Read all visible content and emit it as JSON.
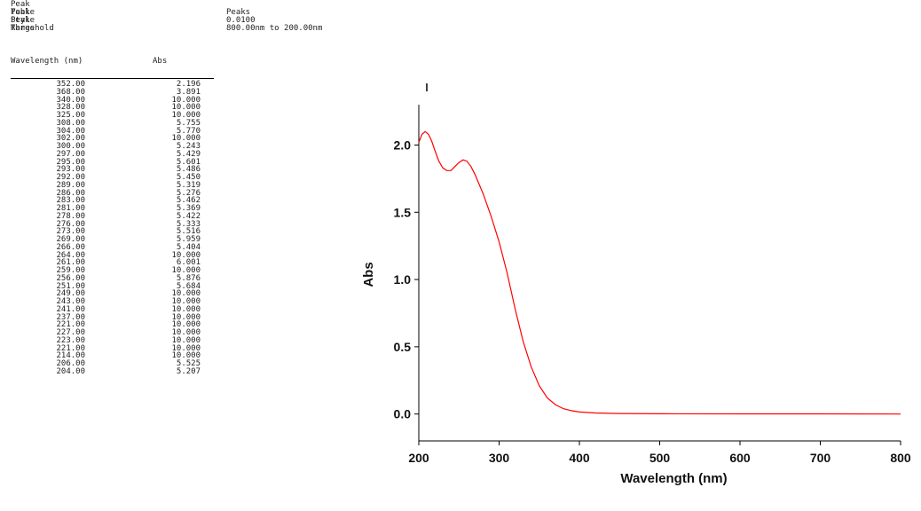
{
  "header": {
    "rows": [
      {
        "key": "Peak Table",
        "value": ""
      },
      {
        "key": "Peak Style",
        "value": "Peaks"
      },
      {
        "key": "Peak Threshold",
        "value": "0.0100"
      },
      {
        "key": "Range",
        "value": "800.00nm to 200.00nm"
      }
    ]
  },
  "table": {
    "col_wavelength": "Wavelength (nm)",
    "col_abs": "Abs",
    "rows": [
      {
        "wavelength": "352.00",
        "abs": "2.196"
      },
      {
        "wavelength": "368.00",
        "abs": "3.891"
      },
      {
        "wavelength": "340.00",
        "abs": "10.000"
      },
      {
        "wavelength": "328.00",
        "abs": "10.000"
      },
      {
        "wavelength": "325.00",
        "abs": "10.000"
      },
      {
        "wavelength": "308.00",
        "abs": "5.755"
      },
      {
        "wavelength": "304.00",
        "abs": "5.770"
      },
      {
        "wavelength": "302.00",
        "abs": "10.000"
      },
      {
        "wavelength": "300.00",
        "abs": "5.243"
      },
      {
        "wavelength": "297.00",
        "abs": "5.429"
      },
      {
        "wavelength": "295.00",
        "abs": "5.601"
      },
      {
        "wavelength": "293.00",
        "abs": "5.486"
      },
      {
        "wavelength": "292.00",
        "abs": "5.450"
      },
      {
        "wavelength": "289.00",
        "abs": "5.319"
      },
      {
        "wavelength": "286.00",
        "abs": "5.276"
      },
      {
        "wavelength": "283.00",
        "abs": "5.462"
      },
      {
        "wavelength": "281.00",
        "abs": "5.369"
      },
      {
        "wavelength": "278.00",
        "abs": "5.422"
      },
      {
        "wavelength": "276.00",
        "abs": "5.333"
      },
      {
        "wavelength": "273.00",
        "abs": "5.516"
      },
      {
        "wavelength": "269.00",
        "abs": "5.959"
      },
      {
        "wavelength": "266.00",
        "abs": "5.404"
      },
      {
        "wavelength": "264.00",
        "abs": "10.000"
      },
      {
        "wavelength": "261.00",
        "abs": "6.001"
      },
      {
        "wavelength": "259.00",
        "abs": "10.000"
      },
      {
        "wavelength": "256.00",
        "abs": "5.876"
      },
      {
        "wavelength": "251.00",
        "abs": "5.684"
      },
      {
        "wavelength": "249.00",
        "abs": "10.000"
      },
      {
        "wavelength": "243.00",
        "abs": "10.000"
      },
      {
        "wavelength": "241.00",
        "abs": "10.000"
      },
      {
        "wavelength": "237.00",
        "abs": "10.000"
      },
      {
        "wavelength": "221.00",
        "abs": "10.000"
      },
      {
        "wavelength": "227.00",
        "abs": "10.000"
      },
      {
        "wavelength": "223.00",
        "abs": "10.000"
      },
      {
        "wavelength": "221.00",
        "abs": "10.000"
      },
      {
        "wavelength": "214.00",
        "abs": "10.000"
      },
      {
        "wavelength": "206.00",
        "abs": "5.525"
      },
      {
        "wavelength": "204.00",
        "abs": "5.207"
      }
    ]
  },
  "chart_data": {
    "type": "line",
    "title": "",
    "xlabel": "Wavelength (nm)",
    "ylabel": "Abs",
    "xlim": [
      200,
      800
    ],
    "ylim": [
      -0.2,
      2.3
    ],
    "xticks": [
      "200",
      "300",
      "400",
      "500",
      "600",
      "700",
      "800"
    ],
    "yticks": [
      "0.0",
      "0.5",
      "1.0",
      "1.5",
      "2.0"
    ],
    "grid": false,
    "series": [
      {
        "color": "#ff0000",
        "x": [
          200,
          204,
          208,
          212,
          216,
          220,
          225,
          230,
          235,
          240,
          245,
          250,
          255,
          260,
          265,
          270,
          280,
          290,
          300,
          310,
          320,
          330,
          340,
          350,
          360,
          370,
          380,
          390,
          400,
          420,
          450,
          500,
          600,
          700,
          800
        ],
        "y": [
          2.02,
          2.08,
          2.1,
          2.08,
          2.03,
          1.96,
          1.88,
          1.83,
          1.81,
          1.81,
          1.84,
          1.87,
          1.89,
          1.88,
          1.84,
          1.78,
          1.64,
          1.47,
          1.28,
          1.05,
          0.78,
          0.54,
          0.35,
          0.21,
          0.12,
          0.07,
          0.04,
          0.025,
          0.015,
          0.008,
          0.004,
          0.002,
          0.001,
          0.001,
          0.0
        ]
      }
    ]
  }
}
